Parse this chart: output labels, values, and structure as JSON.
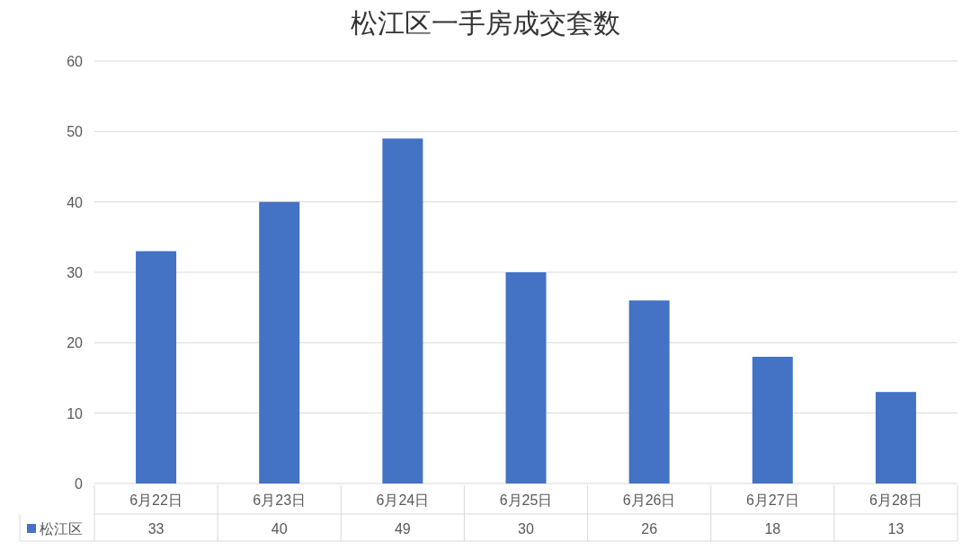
{
  "chart_data": {
    "type": "bar",
    "title": "松江区一手房成交套数",
    "categories": [
      "6月22日",
      "6月23日",
      "6月24日",
      "6月25日",
      "6月26日",
      "6月27日",
      "6月28日"
    ],
    "series": [
      {
        "name": "松江区",
        "color": "#4472c4",
        "values": [
          33,
          40,
          49,
          30,
          26,
          18,
          13
        ]
      }
    ],
    "ylim": [
      0,
      60
    ],
    "yticks": [
      0,
      10,
      20,
      30,
      40,
      50,
      60
    ],
    "grid": "y",
    "data_labels": true,
    "legend": "bottom left"
  }
}
